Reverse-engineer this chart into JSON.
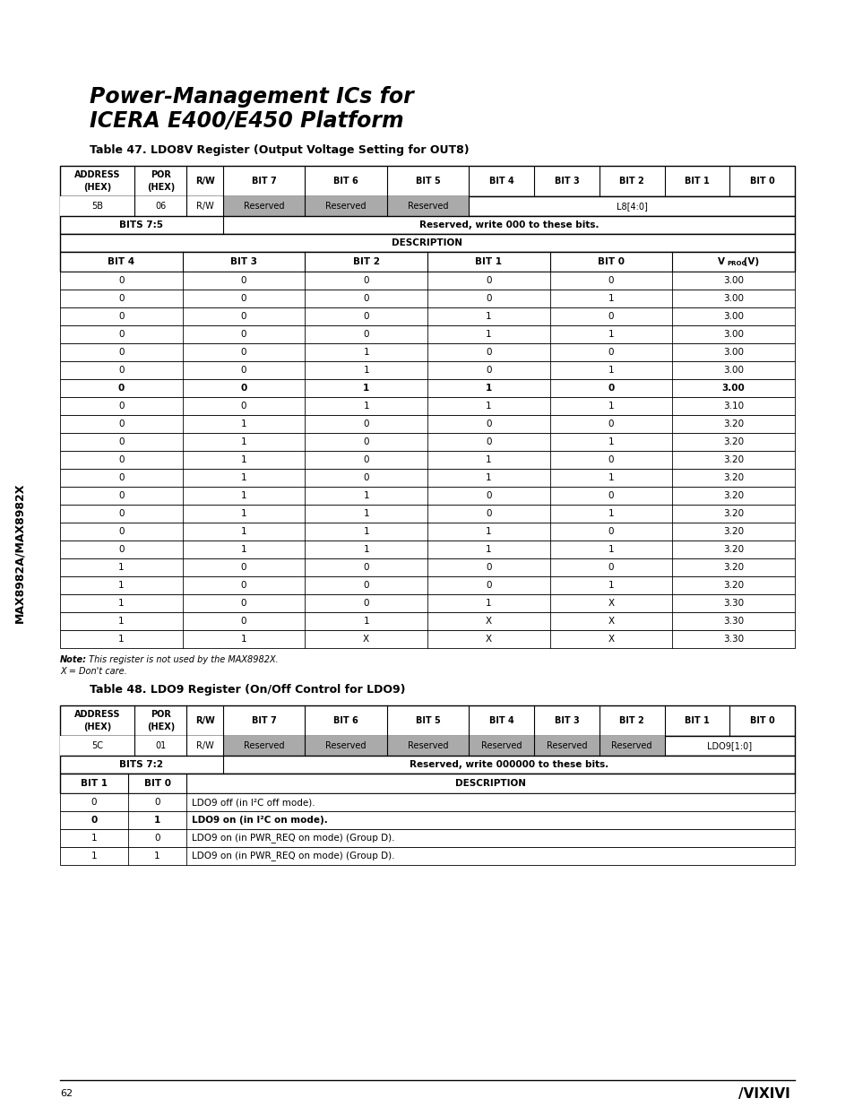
{
  "title_line1": "Power-Management ICs for",
  "title_line2": "ICERA E400/E450 Platform",
  "table47_title": "Table 47. LDO8V Register (Output Voltage Setting for OUT8)",
  "table47_header": [
    "ADDRESS\n(HEX)",
    "POR\n(HEX)",
    "R/W",
    "BIT 7",
    "BIT 6",
    "BIT 5",
    "BIT 4",
    "BIT 3",
    "BIT 2",
    "BIT 1",
    "BIT 0"
  ],
  "table47_row2_label": "BITS 7:5",
  "table47_row2_desc": "Reserved, write 000 to these bits.",
  "table47_desc_cols": [
    "BIT 4",
    "BIT 3",
    "BIT 2",
    "BIT 1",
    "BIT 0",
    "VPROG (V)"
  ],
  "table47_data": [
    [
      "0",
      "0",
      "0",
      "0",
      "0",
      "3.00"
    ],
    [
      "0",
      "0",
      "0",
      "0",
      "1",
      "3.00"
    ],
    [
      "0",
      "0",
      "0",
      "1",
      "0",
      "3.00"
    ],
    [
      "0",
      "0",
      "0",
      "1",
      "1",
      "3.00"
    ],
    [
      "0",
      "0",
      "1",
      "0",
      "0",
      "3.00"
    ],
    [
      "0",
      "0",
      "1",
      "0",
      "1",
      "3.00"
    ],
    [
      "0",
      "0",
      "1",
      "1",
      "0",
      "3.00"
    ],
    [
      "0",
      "0",
      "1",
      "1",
      "1",
      "3.10"
    ],
    [
      "0",
      "1",
      "0",
      "0",
      "0",
      "3.20"
    ],
    [
      "0",
      "1",
      "0",
      "0",
      "1",
      "3.20"
    ],
    [
      "0",
      "1",
      "0",
      "1",
      "0",
      "3.20"
    ],
    [
      "0",
      "1",
      "0",
      "1",
      "1",
      "3.20"
    ],
    [
      "0",
      "1",
      "1",
      "0",
      "0",
      "3.20"
    ],
    [
      "0",
      "1",
      "1",
      "0",
      "1",
      "3.20"
    ],
    [
      "0",
      "1",
      "1",
      "1",
      "0",
      "3.20"
    ],
    [
      "0",
      "1",
      "1",
      "1",
      "1",
      "3.20"
    ],
    [
      "1",
      "0",
      "0",
      "0",
      "0",
      "3.20"
    ],
    [
      "1",
      "0",
      "0",
      "0",
      "1",
      "3.20"
    ],
    [
      "1",
      "0",
      "0",
      "1",
      "X",
      "3.30"
    ],
    [
      "1",
      "0",
      "1",
      "X",
      "X",
      "3.30"
    ],
    [
      "1",
      "1",
      "X",
      "X",
      "X",
      "3.30"
    ]
  ],
  "table47_bold_row": 6,
  "table48_title": "Table 48. LDO9 Register (On/Off Control for LDO9)",
  "table48_header": [
    "ADDRESS\n(HEX)",
    "POR\n(HEX)",
    "R/W",
    "BIT 7",
    "BIT 6",
    "BIT 5",
    "BIT 4",
    "BIT 3",
    "BIT 2",
    "BIT 1",
    "BIT 0"
  ],
  "table48_row2_label": "BITS 7:2",
  "table48_row2_desc": "Reserved, write 000000 to these bits.",
  "table48_data": [
    [
      "0",
      "0",
      "LDO9 off (in I²C off mode)."
    ],
    [
      "0",
      "1",
      "LDO9 on (in I²C on mode)."
    ],
    [
      "1",
      "0",
      "LDO9 on (in PWR_REQ on mode) (Group D)."
    ],
    [
      "1",
      "1",
      "LDO9 on (in PWR_REQ on mode) (Group D)."
    ]
  ],
  "table48_bold_row": 1,
  "page_num": "62",
  "sidebar_text": "MAX8982A/MAX8982X",
  "reserved_bg": "#aaaaaa",
  "bg_color": "#ffffff"
}
